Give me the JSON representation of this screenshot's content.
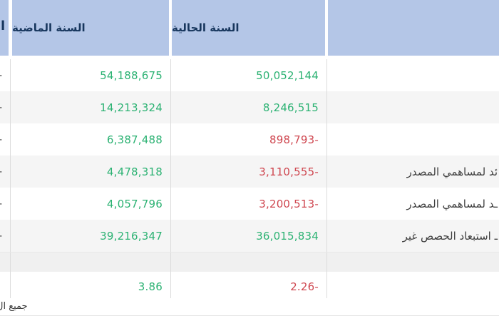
{
  "header": {
    "cut_column_fragment": "ا",
    "past_year_label": "السنة الماضية",
    "current_year_label": "السنة الحالية",
    "labels_column": ""
  },
  "rows": [
    {
      "type": "data",
      "edge_fragment": "-",
      "past": "54,188,675",
      "past_tone": "pos",
      "current": "50,052,144",
      "current_tone": "pos",
      "label": ""
    },
    {
      "type": "data",
      "edge_fragment": "-",
      "past": "14,213,324",
      "past_tone": "pos",
      "current": "8,246,515",
      "current_tone": "pos",
      "label": ""
    },
    {
      "type": "data",
      "edge_fragment": "-",
      "past": "6,387,488",
      "past_tone": "pos",
      "current": "898,793-",
      "current_tone": "neg",
      "label": ""
    },
    {
      "type": "data",
      "edge_fragment": "-",
      "past": "4,478,318",
      "past_tone": "pos",
      "current": "3,110,555-",
      "current_tone": "neg",
      "label": "ئد لمساهمي المصدر"
    },
    {
      "type": "data",
      "edge_fragment": "-",
      "past": "4,057,796",
      "past_tone": "pos",
      "current": "3,200,513-",
      "current_tone": "neg",
      "label": "ـد لمساهمي المصدر"
    },
    {
      "type": "data",
      "edge_fragment": "-",
      "past": "39,216,347",
      "past_tone": "pos",
      "current": "36,015,834",
      "current_tone": "pos",
      "label": "ـ استبعاد الحصص غير"
    },
    {
      "type": "spacer",
      "edge_fragment": "",
      "past": "",
      "past_tone": "",
      "current": "",
      "current_tone": "",
      "label": ""
    },
    {
      "type": "last",
      "edge_fragment": "",
      "past": "3.86",
      "past_tone": "pos",
      "current": "2.26-",
      "current_tone": "neg",
      "label": ""
    }
  ],
  "footer": {
    "note_fragment": "جميع ال"
  },
  "colors": {
    "header_bg": "#b4c6e7",
    "header_text": "#17365d",
    "positive": "#2cb273",
    "negative": "#cf4750",
    "stripe": "#f5f5f5",
    "separator": "#dcdcdc"
  }
}
